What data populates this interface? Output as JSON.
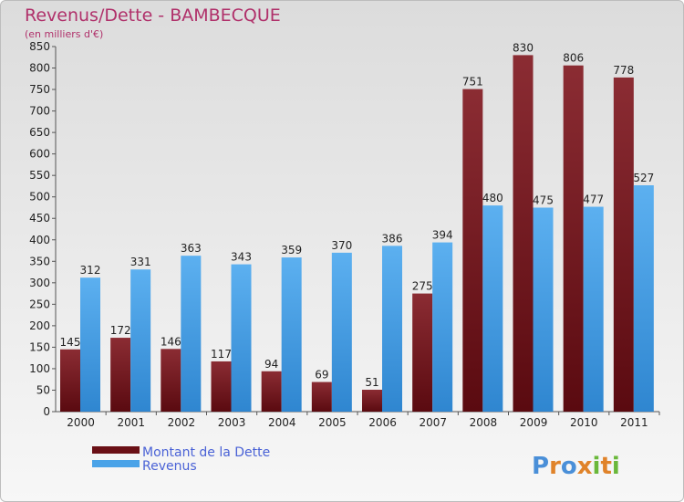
{
  "chart_data": {
    "type": "bar",
    "title": "Revenus/Dette - BAMBECQUE",
    "subtitle": "(en milliers d'€)",
    "categories": [
      "2000",
      "2001",
      "2002",
      "2003",
      "2004",
      "2005",
      "2006",
      "2007",
      "2008",
      "2009",
      "2010",
      "2011"
    ],
    "series": [
      {
        "name": "Montant de la Dette",
        "color": "#7a1a1f",
        "values": [
          145,
          172,
          146,
          117,
          94,
          69,
          51,
          275,
          751,
          830,
          806,
          778
        ]
      },
      {
        "name": "Revenus",
        "color": "#4aa3e8",
        "values": [
          312,
          331,
          363,
          343,
          359,
          370,
          386,
          394,
          480,
          475,
          477,
          527
        ]
      }
    ],
    "ylim": [
      0,
      850
    ],
    "ytick_step": 50,
    "grid": false,
    "legend_position": "bottom-left"
  },
  "logo": {
    "text": "Proxiti"
  }
}
